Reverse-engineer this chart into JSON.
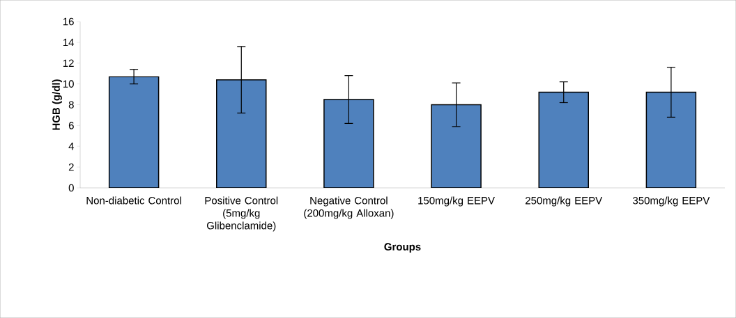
{
  "chart_data": {
    "type": "bar",
    "xlabel": "Groups",
    "ylabel": "HGB (g/dl)",
    "categories": [
      "Non-diabetic Control",
      "Positive Control (5mg/kg Glibenclamide)",
      "Negative Control (200mg/kg Alloxan)",
      "150mg/kg EEPV",
      "250mg/kg EEPV",
      "350mg/kg EEPV"
    ],
    "values": [
      10.7,
      10.4,
      8.5,
      8.0,
      9.2,
      9.2
    ],
    "errors": [
      0.7,
      3.2,
      2.3,
      2.1,
      1.0,
      2.4
    ],
    "color": "#4f81bd",
    "ylim": [
      0,
      16
    ],
    "yticks": [
      0,
      2,
      4,
      6,
      8,
      10,
      12,
      14,
      16
    ],
    "grid": false
  }
}
